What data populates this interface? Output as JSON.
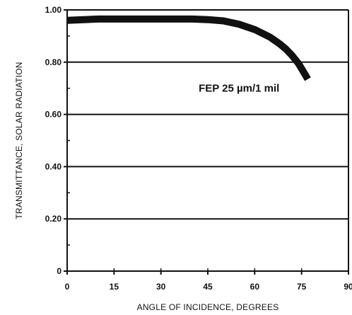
{
  "chart_data": {
    "type": "line",
    "xlabel": "ANGLE OF INCIDENCE, DEGREES",
    "ylabel": "TRANSMITTANCE, SOLAR RADIATION",
    "xlim": [
      0,
      90
    ],
    "ylim": [
      0,
      1.0
    ],
    "x_ticks": [
      0,
      15,
      30,
      45,
      60,
      75,
      90
    ],
    "x_tick_labels": [
      "0",
      "15",
      "30",
      "45",
      "60",
      "75",
      "90"
    ],
    "y_ticks": [
      0,
      0.2,
      0.4,
      0.6,
      0.8,
      1.0
    ],
    "y_tick_labels": [
      "0",
      "0.20",
      "0.40",
      "0.60",
      "0.80",
      "1.00"
    ],
    "grid": "horizontal",
    "series": [
      {
        "name": "FEP 25 µm/1 mil",
        "color": "#111111",
        "x": [
          0,
          10,
          20,
          30,
          40,
          45,
          50,
          55,
          60,
          65,
          68,
          70,
          72,
          74,
          75,
          76,
          77
        ],
        "y": [
          0.96,
          0.965,
          0.965,
          0.965,
          0.965,
          0.963,
          0.958,
          0.945,
          0.925,
          0.895,
          0.87,
          0.85,
          0.825,
          0.795,
          0.775,
          0.755,
          0.735
        ]
      }
    ],
    "annotation": "FEP 25 µm/1 mil"
  }
}
